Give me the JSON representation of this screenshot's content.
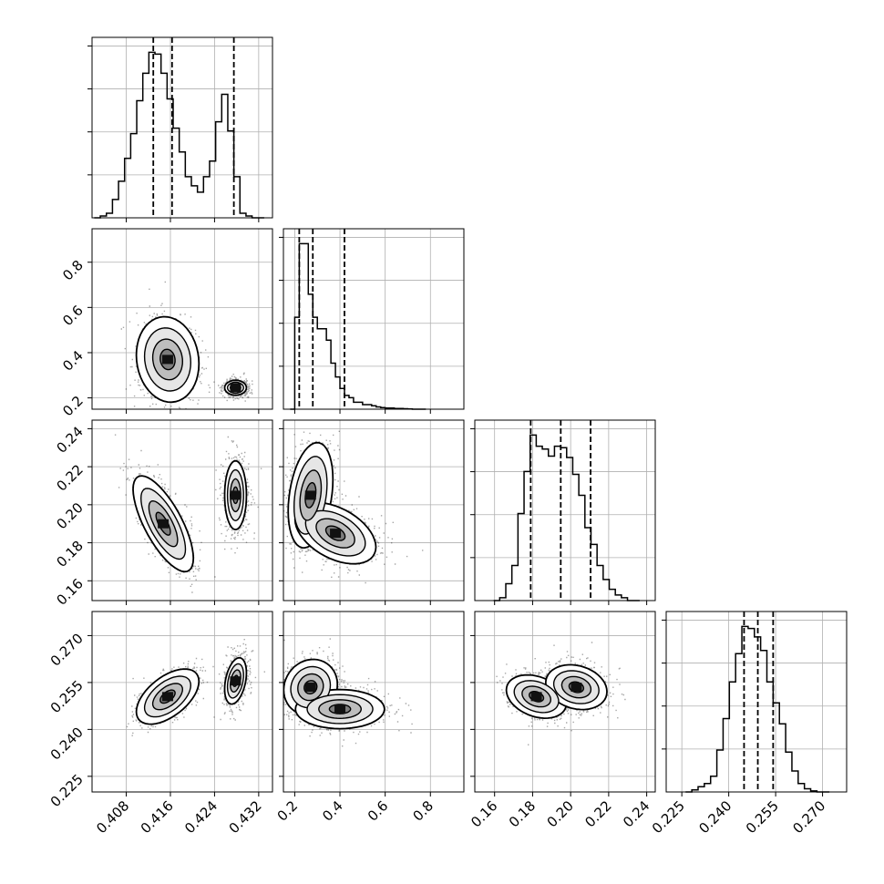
{
  "figure": {
    "type": "corner-plot",
    "dimensions": 4
  },
  "chart_data": {
    "type": "scatter",
    "subtype": "corner",
    "title": "",
    "grid": true,
    "colors": {
      "data": "#000000",
      "grid": "#b0b0b0",
      "frame": "#000000",
      "background": "#ffffff"
    },
    "parameters": [
      {
        "label": "",
        "range": [
          0.4018,
          0.4345
        ],
        "ticks": [
          0.408,
          0.416,
          0.424,
          0.432
        ],
        "tick_labels": [
          "0.408",
          "0.416",
          "0.424",
          "0.432"
        ],
        "quantiles": [
          0.4129,
          0.4163,
          0.4275
        ]
      },
      {
        "label": "",
        "range": [
          0.15,
          0.948
        ],
        "ticks": [
          0.2,
          0.4,
          0.6,
          0.8
        ],
        "tick_labels": [
          "0.2",
          "0.4",
          "0.6",
          "0.8"
        ],
        "quantiles": [
          0.22,
          0.28,
          0.42
        ]
      },
      {
        "label": "",
        "range": [
          0.1496,
          0.2445
        ],
        "ticks": [
          0.16,
          0.18,
          0.2,
          0.22,
          0.24
        ],
        "tick_labels": [
          "0.16",
          "0.18",
          "0.20",
          "0.22",
          "0.24"
        ],
        "quantiles": [
          0.179,
          0.1948,
          0.2105
        ]
      },
      {
        "label": "",
        "range": [
          0.22,
          0.2777
        ],
        "ticks": [
          0.225,
          0.24,
          0.255,
          0.27
        ],
        "tick_labels": [
          "0.225",
          "0.240",
          "0.255",
          "0.270"
        ],
        "quantiles": [
          0.2449,
          0.2493,
          0.2542
        ]
      }
    ],
    "histograms": [
      {
        "param": 0,
        "bin_edges": [
          0.4022,
          0.4033,
          0.4044,
          0.4055,
          0.4066,
          0.4077,
          0.4088,
          0.4099,
          0.411,
          0.4121,
          0.4132,
          0.4143,
          0.4154,
          0.4165,
          0.4176,
          0.4187,
          0.4198,
          0.4209,
          0.422,
          0.4231,
          0.4242,
          0.4253,
          0.4264,
          0.4275,
          0.4286,
          0.4297,
          0.4308,
          0.4319,
          0.433
        ],
        "counts": [
          0,
          2,
          5,
          20,
          40,
          65,
          92,
          128,
          158,
          181,
          179,
          158,
          130,
          98,
          72,
          45,
          35,
          28,
          45,
          62,
          105,
          135,
          95,
          45,
          5,
          2,
          0,
          0
        ]
      },
      {
        "param": 1,
        "bin_edges": [
          0.18,
          0.2,
          0.22,
          0.24,
          0.26,
          0.28,
          0.3,
          0.32,
          0.34,
          0.36,
          0.38,
          0.4,
          0.42,
          0.44,
          0.46,
          0.48,
          0.5,
          0.52,
          0.54,
          0.56,
          0.58,
          0.6,
          0.62,
          0.64,
          0.66,
          0.68,
          0.7,
          0.72,
          0.74,
          0.76,
          0.78
        ],
        "counts": [
          0,
          40,
          72,
          72,
          50,
          40,
          35,
          35,
          30,
          20,
          14,
          9,
          6,
          5,
          3,
          3,
          2,
          2,
          1.5,
          1,
          0.7,
          0.5,
          0.5,
          0.3,
          0.3,
          0.2,
          0.1,
          0,
          0,
          0
        ]
      },
      {
        "param": 2,
        "bin_edges": [
          0.1595,
          0.1627,
          0.1659,
          0.1691,
          0.1723,
          0.1755,
          0.1787,
          0.1819,
          0.1851,
          0.1883,
          0.1915,
          0.1947,
          0.1979,
          0.2011,
          0.2043,
          0.2075,
          0.2107,
          0.2139,
          0.2171,
          0.2203,
          0.2235,
          0.2267,
          0.2299,
          0.2331,
          0.2363
        ],
        "counts": [
          0,
          2,
          12,
          25,
          62,
          92,
          118,
          110,
          108,
          103,
          110,
          109,
          102,
          90,
          75,
          52,
          40,
          25,
          15,
          8,
          4,
          2,
          0,
          0
        ]
      },
      {
        "param": 3,
        "bin_edges": [
          0.2262,
          0.2282,
          0.2302,
          0.2322,
          0.2342,
          0.2362,
          0.2382,
          0.2402,
          0.2422,
          0.2442,
          0.2462,
          0.2482,
          0.2502,
          0.2522,
          0.2542,
          0.2562,
          0.2582,
          0.2602,
          0.2622,
          0.2642,
          0.2662,
          0.2682,
          0.2702,
          0.2722
        ],
        "counts": [
          0,
          2,
          5,
          8,
          15,
          40,
          70,
          105,
          132,
          158,
          156,
          148,
          135,
          105,
          85,
          65,
          38,
          20,
          8,
          3,
          1,
          0,
          0
        ]
      }
    ],
    "pairs": [
      {
        "row": 1,
        "col": 0,
        "components": [
          {
            "mean": [
              0.4155,
              0.37
            ],
            "sd": [
              0.0027,
              0.09
            ],
            "rho": -0.1,
            "weight": 0.62
          },
          {
            "mean": [
              0.4278,
              0.245
            ],
            "sd": [
              0.0012,
              0.02
            ],
            "rho": 0.0,
            "weight": 0.38
          }
        ]
      },
      {
        "row": 2,
        "col": 0,
        "components": [
          {
            "mean": [
              0.4147,
              0.19
            ],
            "sd": [
              0.0026,
              0.012
            ],
            "rho": -0.72,
            "weight": 0.62
          },
          {
            "mean": [
              0.4278,
              0.205
            ],
            "sd": [
              0.0012,
              0.011
            ],
            "rho": 0.0,
            "weight": 0.38
          }
        ]
      },
      {
        "row": 2,
        "col": 1,
        "components": [
          {
            "mean": [
              0.27,
              0.205
            ],
            "sd": [
              0.05,
              0.014
            ],
            "rho": 0.3,
            "weight": 0.55
          },
          {
            "mean": [
              0.38,
              0.185
            ],
            "sd": [
              0.1,
              0.009
            ],
            "rho": -0.45,
            "weight": 0.45
          }
        ]
      },
      {
        "row": 3,
        "col": 0,
        "components": [
          {
            "mean": [
              0.4155,
              0.2505
            ],
            "sd": [
              0.0027,
              0.0042
            ],
            "rho": 0.55,
            "weight": 0.62
          },
          {
            "mean": [
              0.4278,
              0.2555
            ],
            "sd": [
              0.0012,
              0.0045
            ],
            "rho": 0.35,
            "weight": 0.38
          }
        ]
      },
      {
        "row": 3,
        "col": 1,
        "components": [
          {
            "mean": [
              0.27,
              0.2535
            ],
            "sd": [
              0.06,
              0.0045
            ],
            "rho": 0.1,
            "weight": 0.55
          },
          {
            "mean": [
              0.4,
              0.2465
            ],
            "sd": [
              0.11,
              0.0035
            ],
            "rho": 0.0,
            "weight": 0.45
          }
        ]
      },
      {
        "row": 3,
        "col": 2,
        "components": [
          {
            "mean": [
              0.182,
              0.2505
            ],
            "sd": [
              0.008,
              0.0035
            ],
            "rho": -0.3,
            "weight": 0.55
          },
          {
            "mean": [
              0.203,
              0.2535
            ],
            "sd": [
              0.009,
              0.004
            ],
            "rho": -0.2,
            "weight": 0.45
          }
        ]
      }
    ]
  }
}
